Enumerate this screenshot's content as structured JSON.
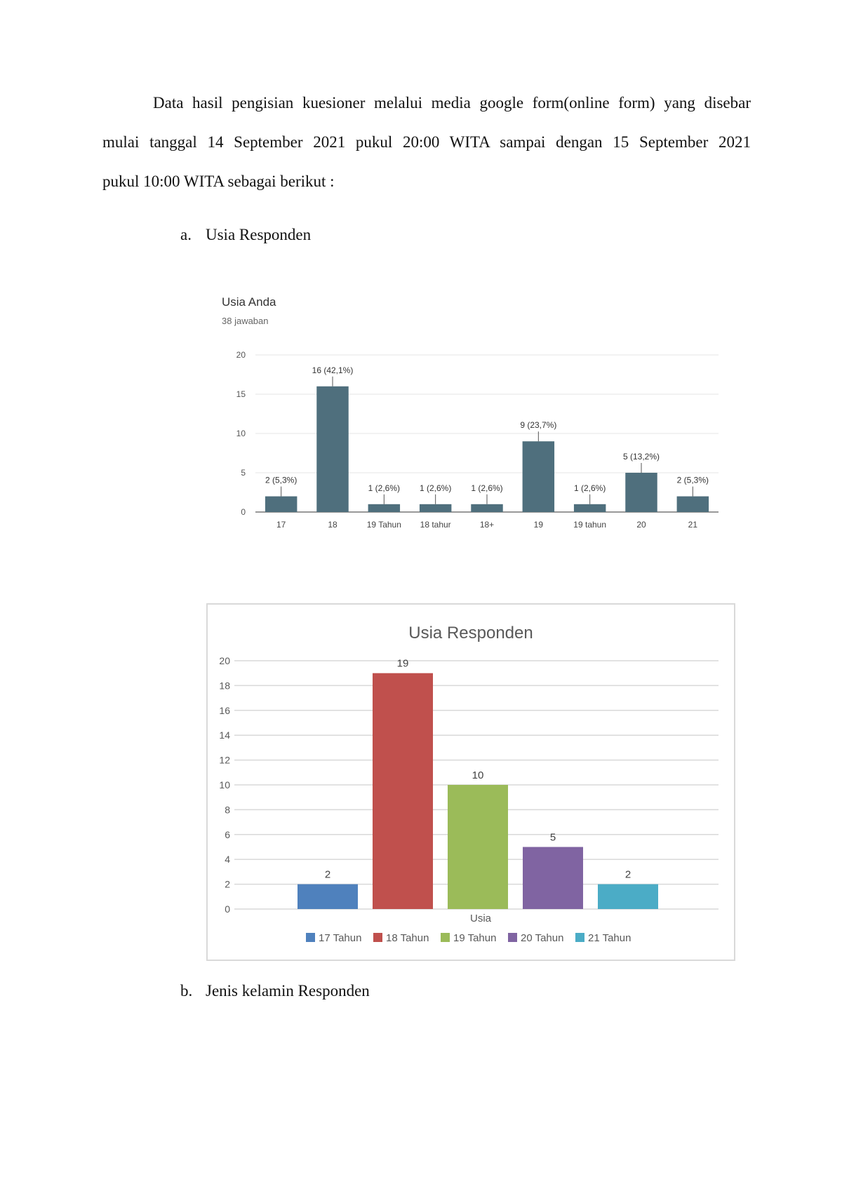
{
  "text": {
    "para_line1": "Data hasil pengisian kuesioner melalui media google form(online form) yang disebar",
    "para_line2": "mulai tanggal 14 September 2021 pukul 20:00 WITA sampai dengan 15 September 2021",
    "para_line3": "pukul 10:00 WITA sebagai berikut :",
    "section_a_label": "a.",
    "section_a_title": "Usia Responden",
    "section_b_label": "b.",
    "section_b_title": "Jenis kelamin Responden"
  },
  "chart_data": [
    {
      "type": "bar",
      "title": "Usia Anda",
      "subtitle": "38 jawaban",
      "categories": [
        "17",
        "18",
        "19 Tahun",
        "18 tahur",
        "18+",
        "19",
        "19 tahun",
        "20",
        "21"
      ],
      "values": [
        2,
        16,
        1,
        1,
        1,
        9,
        1,
        5,
        2
      ],
      "data_labels": [
        "2 (5,3%)",
        "16 (42,1%)",
        "1 (2,6%)",
        "1 (2,6%)",
        "1 (2,6%)",
        "9 (23,7%)",
        "1 (2,6%)",
        "5 (13,2%)",
        "2 (5,3%)"
      ],
      "yticks": [
        "0",
        "5",
        "10",
        "15",
        "20"
      ],
      "ylim": [
        0,
        20
      ],
      "grid": true,
      "bar_color": "#4f6f7d"
    },
    {
      "type": "bar",
      "title": "Usia Responden",
      "xlabel": "Usia",
      "ylim": [
        0,
        20
      ],
      "yticks": [
        "0",
        "2",
        "4",
        "6",
        "8",
        "10",
        "12",
        "14",
        "16",
        "18",
        "20"
      ],
      "grid": true,
      "legend": "bottom",
      "series": [
        {
          "name": "17 Tahun",
          "value": 2,
          "label": "2",
          "color": "#4f81bd"
        },
        {
          "name": "18 Tahun",
          "value": 19,
          "label": "19",
          "color": "#c0504d"
        },
        {
          "name": "19 Tahun",
          "value": 10,
          "label": "10",
          "color": "#9bbb59"
        },
        {
          "name": "20 Tahun",
          "value": 5,
          "label": "5",
          "color": "#8064a2"
        },
        {
          "name": "21 Tahun",
          "value": 2,
          "label": "2",
          "color": "#4bacc6"
        }
      ]
    }
  ]
}
